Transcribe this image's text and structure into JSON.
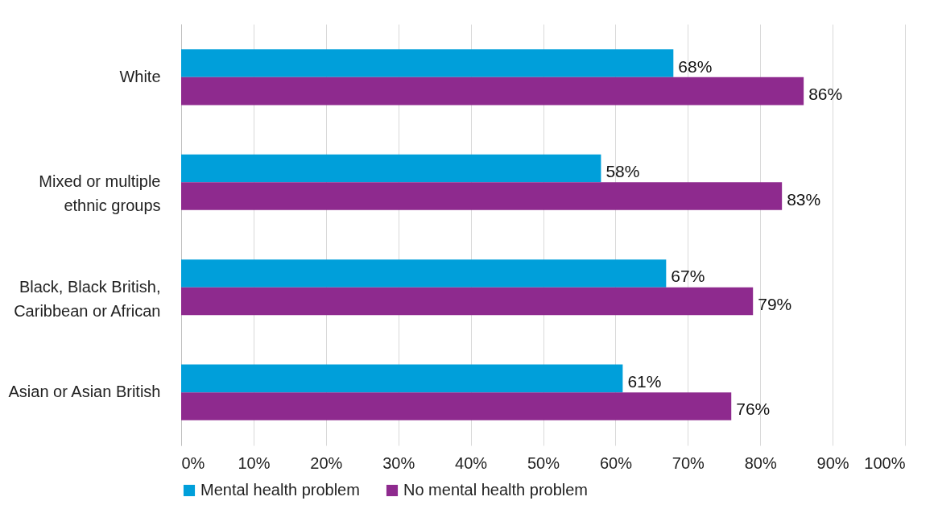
{
  "chart_data": {
    "type": "bar",
    "orientation": "horizontal",
    "categories": [
      "White",
      "Mixed or multiple ethnic groups",
      "Black, Black British, Caribbean or African",
      "Asian or Asian British"
    ],
    "series": [
      {
        "name": "Mental health problem",
        "color": "#009fda",
        "values": [
          68,
          58,
          67,
          61
        ],
        "value_labels": [
          "68%",
          "58%",
          "67%",
          "61%"
        ]
      },
      {
        "name": "No mental health problem",
        "color": "#8e2a8e",
        "values": [
          86,
          83,
          79,
          76
        ],
        "value_labels": [
          "86%",
          "83%",
          "79%",
          "76%"
        ]
      }
    ],
    "xlim": [
      0,
      100
    ],
    "xticks": [
      {
        "value": 0,
        "label": "0%"
      },
      {
        "value": 10,
        "label": "10%"
      },
      {
        "value": 20,
        "label": "20%"
      },
      {
        "value": 30,
        "label": "30%"
      },
      {
        "value": 40,
        "label": "40%"
      },
      {
        "value": 50,
        "label": "50%"
      },
      {
        "value": 60,
        "label": "60%"
      },
      {
        "value": 70,
        "label": "70%"
      },
      {
        "value": 80,
        "label": "80%"
      },
      {
        "value": 90,
        "label": "90%"
      },
      {
        "value": 100,
        "label": "100%"
      }
    ],
    "grid": "x",
    "legend": "bottom"
  }
}
